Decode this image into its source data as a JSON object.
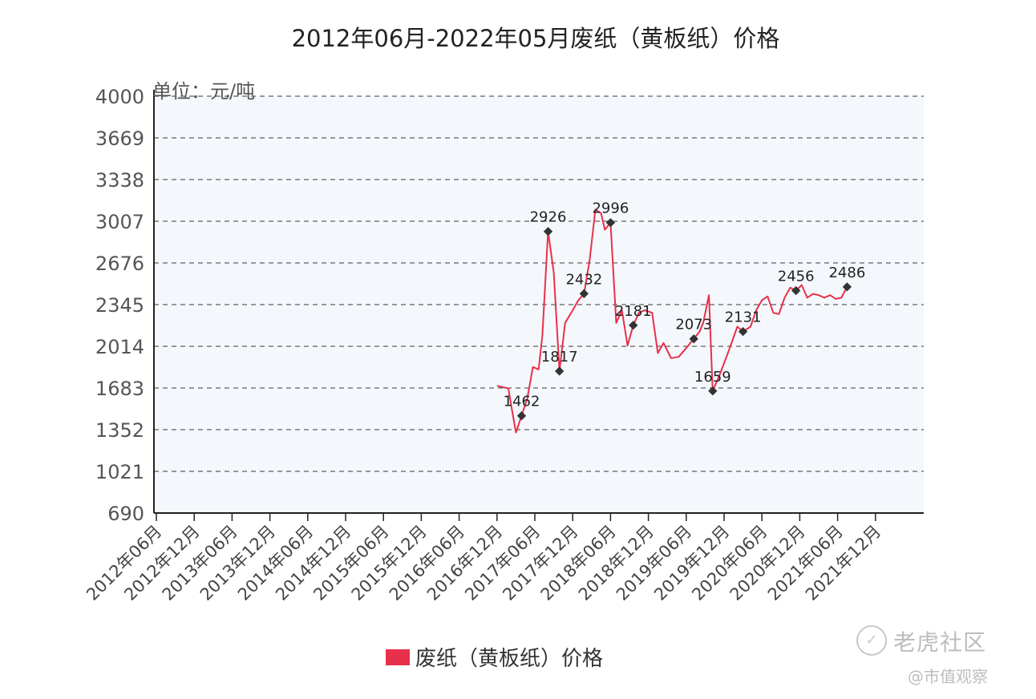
{
  "chart_data": {
    "type": "line",
    "title": "2012年06月-2022年05月废纸（黄板纸）价格",
    "unit_label": "单位：元/吨",
    "yticks": [
      "4000",
      "3669",
      "3338",
      "3007",
      "2676",
      "2345",
      "2014",
      "1683",
      "1352",
      "1021",
      "690"
    ],
    "ylim": [
      690,
      4000
    ],
    "xticks": [
      "2012年06月",
      "2012年12月",
      "2013年06月",
      "2013年12月",
      "2014年06月",
      "2014年12月",
      "2015年06月",
      "2015年12月",
      "2016年06月",
      "2016年12月",
      "2017年06月",
      "2017年12月",
      "2018年06月",
      "2018年12月",
      "2019年06月",
      "2019年12月",
      "2020年06月",
      "2020年12月",
      "2021年06月",
      "2021年12月"
    ],
    "grid": "dashed horizontal",
    "series": [
      {
        "name": "废纸（黄板纸）价格",
        "color": "#e8304a",
        "points": [
          [
            9.0,
            1700
          ],
          [
            9.3,
            1680
          ],
          [
            9.4,
            1500
          ],
          [
            9.5,
            1330
          ],
          [
            9.65,
            1462
          ],
          [
            9.8,
            1600
          ],
          [
            9.95,
            1850
          ],
          [
            10.1,
            1830
          ],
          [
            10.2,
            2100
          ],
          [
            10.35,
            2926
          ],
          [
            10.5,
            2600
          ],
          [
            10.65,
            1817
          ],
          [
            10.8,
            2200
          ],
          [
            11.0,
            2300
          ],
          [
            11.15,
            2380
          ],
          [
            11.3,
            2432
          ],
          [
            11.45,
            2700
          ],
          [
            11.6,
            3100
          ],
          [
            11.75,
            3070
          ],
          [
            11.85,
            2940
          ],
          [
            12.0,
            2996
          ],
          [
            12.15,
            2200
          ],
          [
            12.3,
            2300
          ],
          [
            12.45,
            2020
          ],
          [
            12.6,
            2181
          ],
          [
            12.75,
            2280
          ],
          [
            12.9,
            2300
          ],
          [
            13.1,
            2280
          ],
          [
            13.25,
            1960
          ],
          [
            13.4,
            2040
          ],
          [
            13.6,
            1920
          ],
          [
            13.8,
            1930
          ],
          [
            14.0,
            2000
          ],
          [
            14.2,
            2073
          ],
          [
            14.35,
            2130
          ],
          [
            14.45,
            2200
          ],
          [
            14.6,
            2420
          ],
          [
            14.7,
            1659
          ],
          [
            14.9,
            1800
          ],
          [
            15.15,
            2000
          ],
          [
            15.35,
            2170
          ],
          [
            15.5,
            2131
          ],
          [
            15.7,
            2170
          ],
          [
            15.85,
            2300
          ],
          [
            16.0,
            2380
          ],
          [
            16.15,
            2410
          ],
          [
            16.3,
            2280
          ],
          [
            16.45,
            2270
          ],
          [
            16.6,
            2400
          ],
          [
            16.75,
            2480
          ],
          [
            16.9,
            2456
          ],
          [
            17.05,
            2500
          ],
          [
            17.2,
            2400
          ],
          [
            17.35,
            2430
          ],
          [
            17.5,
            2420
          ],
          [
            17.65,
            2400
          ],
          [
            17.8,
            2420
          ],
          [
            17.95,
            2390
          ],
          [
            18.1,
            2400
          ],
          [
            18.25,
            2486
          ]
        ],
        "labeled_points": [
          {
            "x": 9.65,
            "y": 1462,
            "label": "1462"
          },
          {
            "x": 10.35,
            "y": 2926,
            "label": "2926"
          },
          {
            "x": 10.65,
            "y": 1817,
            "label": "1817"
          },
          {
            "x": 11.3,
            "y": 2432,
            "label": "2432"
          },
          {
            "x": 12.0,
            "y": 2996,
            "label": "2996"
          },
          {
            "x": 12.6,
            "y": 2181,
            "label": "2181"
          },
          {
            "x": 14.2,
            "y": 2073,
            "label": "2073"
          },
          {
            "x": 14.7,
            "y": 1659,
            "label": "1659"
          },
          {
            "x": 15.5,
            "y": 2131,
            "label": "2131"
          },
          {
            "x": 16.9,
            "y": 2456,
            "label": "2456"
          },
          {
            "x": 18.25,
            "y": 2486,
            "label": "2486"
          }
        ]
      }
    ],
    "legend": {
      "position": "bottom",
      "label": "废纸（黄板纸）价格"
    }
  },
  "watermark": {
    "brand": "老虎社区",
    "sub": "@市值观察"
  }
}
